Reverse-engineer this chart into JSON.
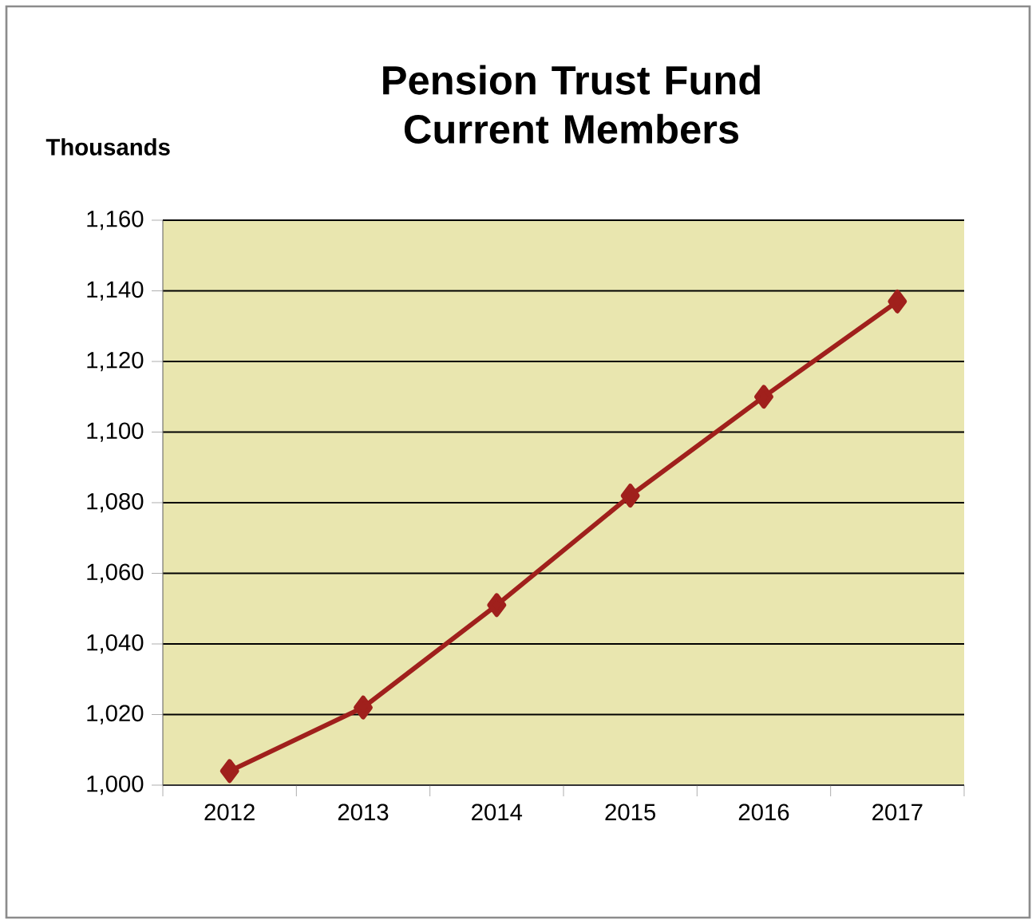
{
  "chart_data": {
    "type": "line",
    "title": "Pension Trust Fund Current Members",
    "ylabel": "Thousands",
    "categories": [
      "2012",
      "2013",
      "2014",
      "2015",
      "2016",
      "2017"
    ],
    "series": [
      {
        "color": "#a0201c",
        "values": [
          1004,
          1022,
          1051,
          1082,
          1110,
          1137
        ]
      }
    ],
    "ylim": [
      1000,
      1160
    ],
    "yticks": [
      {
        "value": 1000,
        "label": "1,000"
      },
      {
        "value": 1020,
        "label": "1,020"
      },
      {
        "value": 1040,
        "label": "1,040"
      },
      {
        "value": 1060,
        "label": "1,060"
      },
      {
        "value": 1080,
        "label": "1,080"
      },
      {
        "value": 1100,
        "label": "1,100"
      },
      {
        "value": 1120,
        "label": "1,120"
      },
      {
        "value": 1140,
        "label": "1,140"
      },
      {
        "value": 1160,
        "label": "1,160"
      }
    ],
    "grid": "y",
    "marker": "diamond",
    "line_style": "solid"
  }
}
